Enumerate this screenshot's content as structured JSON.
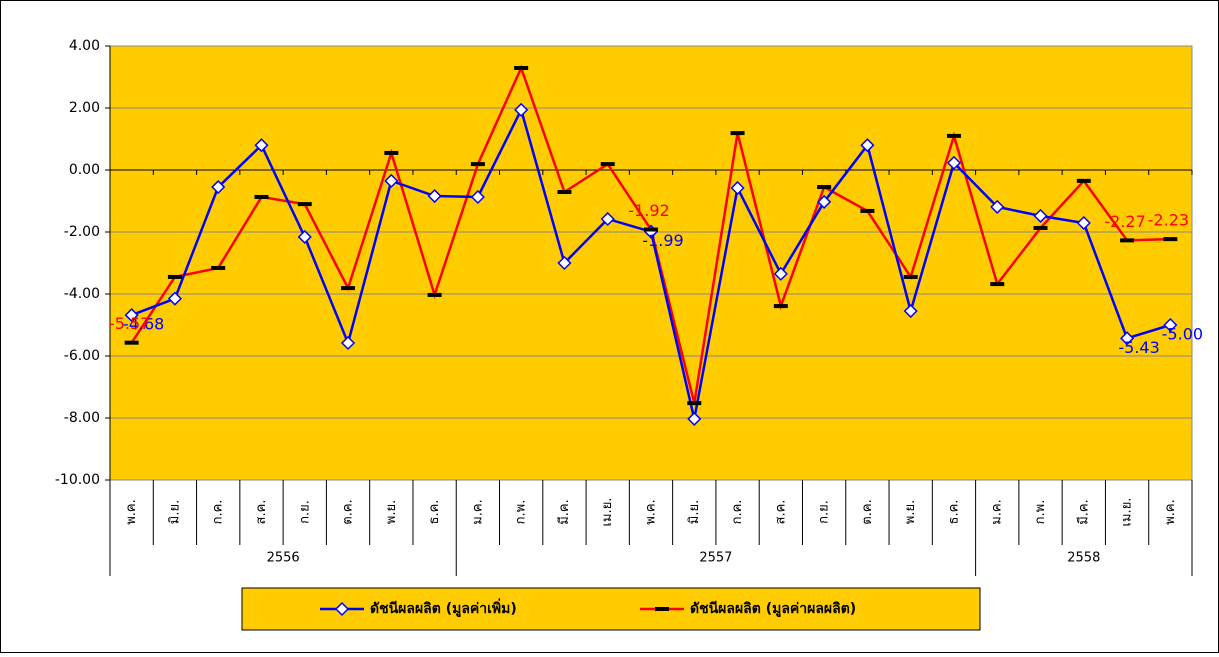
{
  "chart_data": {
    "type": "line",
    "categories": [
      "พ.ค.",
      "มิ.ย.",
      "ก.ค.",
      "ส.ค.",
      "ก.ย.",
      "ต.ค.",
      "พ.ย.",
      "ธ.ค.",
      "ม.ค.",
      "ก.พ.",
      "มี.ค.",
      "เม.ย.",
      "พ.ค.",
      "มิ.ย.",
      "ก.ค.",
      "ส.ค.",
      "ก.ย.",
      "ต.ค.",
      "พ.ย.",
      "ธ.ค.",
      "ม.ค.",
      "ก.พ.",
      "มี.ค.",
      "เม.ย.",
      "พ.ค."
    ],
    "groups": [
      {
        "label": "2556",
        "count": 8
      },
      {
        "label": "2557",
        "count": 12
      },
      {
        "label": "2558",
        "count": 5
      }
    ],
    "series": [
      {
        "name": "ดัชนีผลผลิต (มูลค่าเพิ่ม)",
        "color": "#0000ff",
        "marker": "diamond",
        "values": [
          -4.68,
          -4.15,
          -0.55,
          0.8,
          -2.16,
          -5.58,
          -0.35,
          -0.84,
          -0.87,
          1.94,
          -3.0,
          -1.58,
          -1.99,
          -8.03,
          -0.58,
          -3.35,
          -1.03,
          0.8,
          -4.55,
          0.23,
          -1.19,
          -1.48,
          -1.71,
          -5.43,
          -5.0
        ],
        "value_labels": [
          "-4.68",
          null,
          null,
          null,
          null,
          null,
          null,
          null,
          null,
          null,
          null,
          null,
          "-1.99",
          null,
          null,
          null,
          null,
          null,
          null,
          null,
          null,
          null,
          null,
          "-5.43",
          "-5.00"
        ]
      },
      {
        "name": "ดัชนีผลผลิต (มูลค่าผลผลิต)",
        "color": "#ff0000",
        "marker": "dash",
        "marker_color": "#000000",
        "values": [
          -5.57,
          -3.45,
          -3.16,
          -0.87,
          -1.1,
          -3.81,
          0.55,
          -4.03,
          0.19,
          3.29,
          -0.71,
          0.19,
          -1.92,
          -7.52,
          1.19,
          -4.39,
          -0.55,
          -1.32,
          -3.45,
          1.1,
          -3.68,
          -1.87,
          -0.35,
          -2.27,
          -2.23
        ],
        "value_labels": [
          "-5.57",
          null,
          null,
          null,
          null,
          null,
          null,
          null,
          null,
          null,
          null,
          null,
          "-1.92",
          null,
          null,
          null,
          null,
          null,
          null,
          null,
          null,
          null,
          null,
          "-2.27",
          "-2.23"
        ]
      }
    ],
    "ylim": [
      -10,
      4
    ],
    "yticks": [
      {
        "value": -10,
        "label": "-10.00"
      },
      {
        "value": -8,
        "label": "-8.00"
      },
      {
        "value": -6,
        "label": "-6.00"
      },
      {
        "value": -4,
        "label": "-4.00"
      },
      {
        "value": -2,
        "label": "-2.00"
      },
      {
        "value": 0,
        "label": "0.00"
      },
      {
        "value": 2,
        "label": "2.00"
      },
      {
        "value": 4,
        "label": "4.00"
      }
    ],
    "grid": true,
    "plot_background": "#ffcc00",
    "legend": "bottom"
  }
}
